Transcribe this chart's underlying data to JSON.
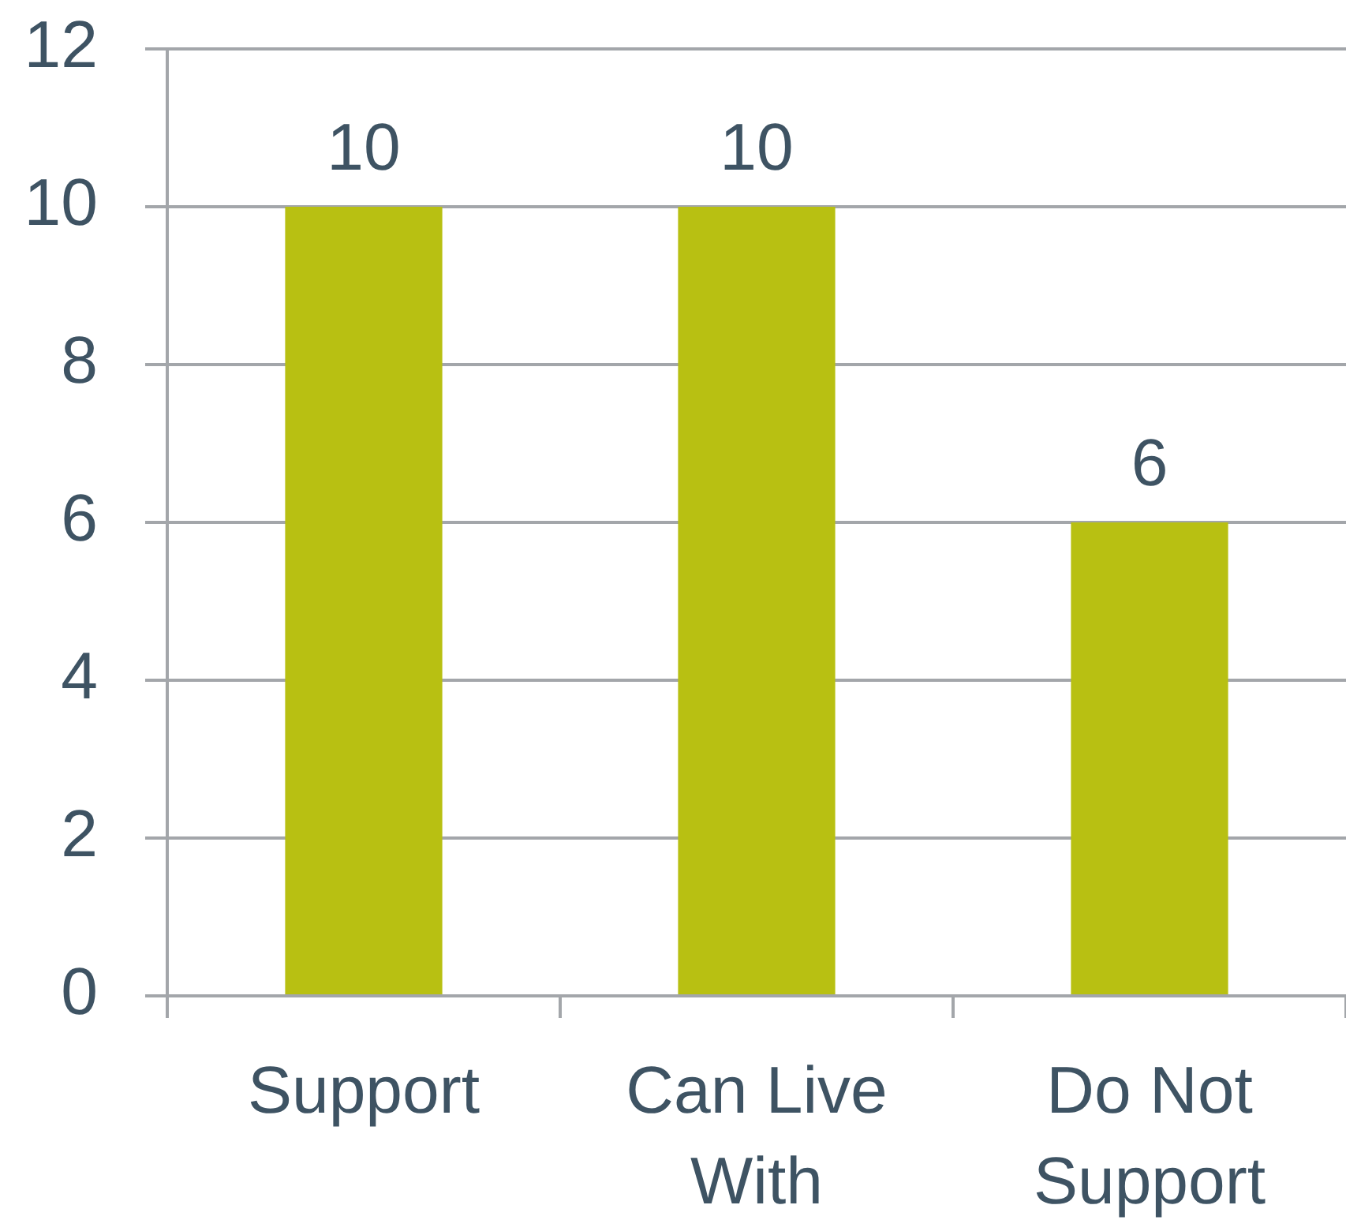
{
  "chart_data": {
    "type": "bar",
    "categories": [
      "Support",
      "Can Live With",
      "Do Not Support"
    ],
    "values": [
      10,
      10,
      6
    ],
    "color": "#b8c012",
    "ylim": [
      0,
      12
    ],
    "yticks": [
      0,
      2,
      4,
      6,
      8,
      10,
      12
    ],
    "grid": "y",
    "data_labels": true
  }
}
